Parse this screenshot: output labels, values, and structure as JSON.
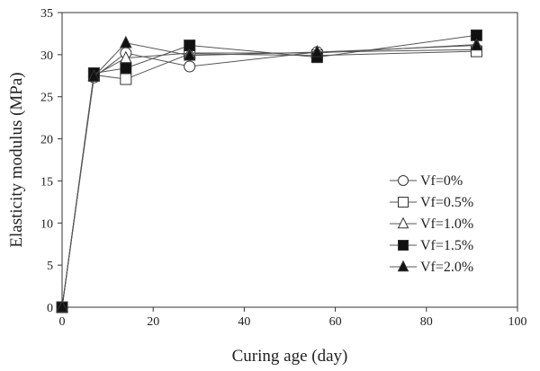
{
  "chart_data": {
    "type": "line",
    "title": "",
    "xlabel": "Curing age (day)",
    "ylabel": "Elasticity modulus (MPa)",
    "xlim": [
      0,
      100
    ],
    "ylim": [
      0,
      35
    ],
    "x_ticks": [
      0,
      20,
      40,
      60,
      80,
      100
    ],
    "y_ticks": [
      0,
      5,
      10,
      15,
      20,
      25,
      30,
      35
    ],
    "grid": false,
    "legend_position": "bottom-right",
    "x": [
      0,
      7,
      14,
      28,
      56,
      91
    ],
    "series": [
      {
        "name": "Vf=0%",
        "marker": "circle-open",
        "values": [
          0,
          27.3,
          30.2,
          28.6,
          30.3,
          30.6
        ]
      },
      {
        "name": "Vf=0.5%",
        "marker": "square-open",
        "values": [
          0,
          27.6,
          27.1,
          30.1,
          29.9,
          30.4
        ]
      },
      {
        "name": "Vf=1.0%",
        "marker": "triangle-open",
        "values": [
          0,
          27.5,
          29.6,
          30.2,
          30.2,
          31.2
        ]
      },
      {
        "name": "Vf=1.5%",
        "marker": "square-filled",
        "values": [
          0,
          27.8,
          28.4,
          31.1,
          29.7,
          32.3
        ]
      },
      {
        "name": "Vf=2.0%",
        "marker": "triangle-filled",
        "values": [
          0,
          27.4,
          31.4,
          29.9,
          30.3,
          31.1
        ]
      }
    ]
  }
}
